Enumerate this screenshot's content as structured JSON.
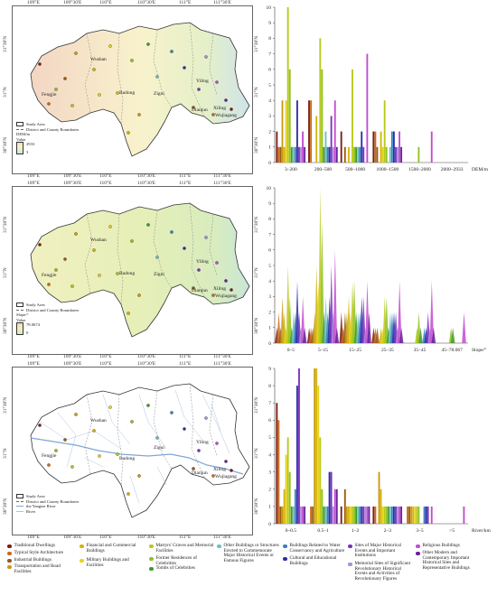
{
  "panels": [
    {
      "id": "dem",
      "lat_ticks": [
        "31°30'N",
        "31°N",
        "30°30'N"
      ],
      "lon_ticks": [
        "109°E",
        "109°30'E",
        "110°E",
        "110°30'E",
        "111°E",
        "111°30'E"
      ],
      "cities": [
        "Wushan",
        "Fengjie",
        "Badong",
        "Zigui",
        "Yiling",
        "Dianjun",
        "Xiling",
        "Wujiagang"
      ],
      "legend": {
        "study_area": "Study Area",
        "boundaries": "District and County Boundaries",
        "field": "DEM/m",
        "value_label": "Value",
        "high": "2933",
        "low": "3"
      },
      "ramp_colors": [
        "#f3d6c4",
        "#f8f2cc",
        "#e5f0c8",
        "#cfe3ea"
      ]
    },
    {
      "id": "slope",
      "lat_ticks": [
        "31°30'N",
        "31°N",
        "30°30'N"
      ],
      "lon_ticks": [
        "109°E",
        "109°30'E",
        "110°E",
        "110°30'E",
        "111°E",
        "111°30'E"
      ],
      "cities": [
        "Wushan",
        "Fengjie",
        "Badong",
        "Zigui",
        "Yiling",
        "Dianjun",
        "Xiling",
        "Wujiagang"
      ],
      "legend": {
        "study_area": "Study Area",
        "boundaries": "District and County Boundaries",
        "field": "Slope/°",
        "value_label": "Value",
        "high": "78.0674",
        "low": "0"
      },
      "ramp_colors": [
        "#f0f0c0",
        "#e6efb8",
        "#d8ecbe",
        "#c8e6d8"
      ]
    },
    {
      "id": "river",
      "lat_ticks": [
        "31°30'N",
        "31°N",
        "30°30'N"
      ],
      "lon_ticks": [
        "109°E",
        "109°30'E",
        "110°E",
        "110°30'E",
        "111°E",
        "111°30'E"
      ],
      "cities": [
        "Wushan",
        "Fengjie",
        "Badong",
        "Zigui",
        "Yiling",
        "Dianjun",
        "Xiling",
        "Wujiagang"
      ],
      "legend": {
        "study_area": "Study Area",
        "boundaries": "District and County Boundaries",
        "yangtze": "the Yangtze River",
        "river": "River"
      },
      "ramp_colors": [
        "#ffffff"
      ]
    }
  ],
  "categories": [
    {
      "label": "Traditional Dwellings",
      "color": "#7b1d12"
    },
    {
      "label": "Typical Style Architecture",
      "color": "#c96a1c"
    },
    {
      "label": "Industrial Buildings",
      "color": "#9a5a12"
    },
    {
      "label": "Transportation and Road Facilities",
      "color": "#c99a10"
    },
    {
      "label": "Financial and Commercial Buildings",
      "color": "#d4b40a"
    },
    {
      "label": "Military Buildings and Facilities",
      "color": "#e6d21a"
    },
    {
      "label": "Martyrs' Graves and Memorial Facilities",
      "color": "#b8c818"
    },
    {
      "label": "Former Residences of Celebrities",
      "color": "#8fc21e"
    },
    {
      "label": "Tombs of Celebrities",
      "color": "#3e9a2a"
    },
    {
      "label": "Other Buildings or Structures Erected to Commemorate Major Historical Events or Famous Figures",
      "color": "#6cc0c0"
    },
    {
      "label": "Buildings Related to Water Conservancy and Agriculture",
      "color": "#3a7fc4"
    },
    {
      "label": "Cultural and Educational Buildings",
      "color": "#2b2fa0"
    },
    {
      "label": "Sites of Major Historical Events and Important Institutions",
      "color": "#7a30c0"
    },
    {
      "label": "Memorial Sites of Significant Revolutionary Historical Events and Activities of Revolutionary Figures",
      "color": "#a98fd8"
    },
    {
      "label": "Religious Buildings",
      "color": "#c24ad0"
    },
    {
      "label": "Other Modern and Contemporary Important Historical Sites and Representative Buildings",
      "color": "#6a1f9a"
    }
  ],
  "chart_data": [
    {
      "type": "bar",
      "xlabel": "DEM/m",
      "ylabel": "",
      "ylim": [
        0,
        10
      ],
      "yticks": [
        0,
        1,
        2,
        3,
        4,
        5,
        6,
        7,
        8,
        9,
        10
      ],
      "categories": [
        "3–200",
        "200–500",
        "500–1000",
        "1000–1500",
        "1500–2000",
        "2000–2933"
      ],
      "series_values": [
        [
          2,
          4,
          2,
          2,
          0,
          0
        ],
        [
          1,
          4,
          0,
          2,
          0,
          0
        ],
        [
          1,
          0,
          1,
          1,
          0,
          0
        ],
        [
          4,
          0,
          0,
          0,
          0,
          0
        ],
        [
          1,
          3,
          1,
          2,
          0,
          0
        ],
        [
          4,
          0,
          0,
          1,
          0,
          0
        ],
        [
          10,
          8,
          6,
          4,
          0,
          0
        ],
        [
          6,
          6,
          1,
          1,
          1,
          0
        ],
        [
          1,
          1,
          1,
          0,
          0,
          0
        ],
        [
          1,
          2,
          1,
          1,
          0,
          0
        ],
        [
          1,
          1,
          1,
          2,
          0,
          0
        ],
        [
          4,
          1,
          2,
          2,
          0,
          0
        ],
        [
          1,
          3,
          1,
          1,
          0,
          0
        ],
        [
          1,
          1,
          0,
          1,
          0,
          0
        ],
        [
          2,
          4,
          7,
          2,
          2,
          0
        ],
        [
          1,
          1,
          0,
          1,
          0,
          0
        ]
      ]
    },
    {
      "type": "bar",
      "xlabel": "Slope/°",
      "ylabel": "",
      "ylim": [
        0,
        10
      ],
      "yticks": [
        0,
        1,
        2,
        3,
        4,
        5,
        6,
        7,
        8,
        9,
        10
      ],
      "categories": [
        "0–5",
        "5–15",
        "15–25",
        "25–35",
        "35–45",
        "45–78.067"
      ],
      "series_values": [
        [
          1,
          1,
          2,
          1,
          0,
          0
        ],
        [
          2,
          1,
          1,
          1,
          0,
          0
        ],
        [
          1,
          1,
          2,
          1,
          0,
          0
        ],
        [
          3,
          2,
          2,
          0,
          0,
          0
        ],
        [
          2,
          5,
          3,
          1,
          0,
          0
        ],
        [
          1,
          4,
          2,
          1,
          0,
          0
        ],
        [
          5,
          10,
          4,
          3,
          1,
          0
        ],
        [
          3,
          8,
          4,
          3,
          2,
          1
        ],
        [
          1,
          2,
          2,
          1,
          1,
          1
        ],
        [
          2,
          3,
          2,
          2,
          0,
          0
        ],
        [
          2,
          2,
          2,
          2,
          1,
          0
        ],
        [
          4,
          3,
          3,
          2,
          1,
          0
        ],
        [
          2,
          5,
          3,
          2,
          2,
          0
        ],
        [
          1,
          2,
          1,
          1,
          1,
          0
        ],
        [
          3,
          6,
          4,
          4,
          4,
          2
        ],
        [
          1,
          1,
          2,
          1,
          1,
          0
        ]
      ]
    },
    {
      "type": "bar",
      "xlabel": "River/km",
      "ylabel": "",
      "ylim": [
        0,
        9
      ],
      "yticks": [
        0,
        1,
        2,
        3,
        4,
        5,
        6,
        7,
        8,
        9
      ],
      "categories": [
        "0–0.5",
        "0.5–1",
        "1–2",
        "2–3",
        "3–5",
        ">5"
      ],
      "series_values": [
        [
          7,
          0,
          1,
          1,
          0,
          0
        ],
        [
          6,
          1,
          0,
          1,
          1,
          0
        ],
        [
          1,
          1,
          2,
          0,
          1,
          0
        ],
        [
          1,
          9,
          1,
          3,
          1,
          0
        ],
        [
          2,
          9,
          1,
          2,
          1,
          0
        ],
        [
          4,
          8,
          1,
          1,
          1,
          0
        ],
        [
          5,
          5,
          1,
          1,
          1,
          0
        ],
        [
          3,
          2,
          1,
          1,
          1,
          0
        ],
        [
          1,
          1,
          1,
          1,
          0,
          0
        ],
        [
          1,
          1,
          1,
          1,
          0,
          0
        ],
        [
          2,
          1,
          1,
          1,
          1,
          0
        ],
        [
          8,
          3,
          1,
          1,
          1,
          0
        ],
        [
          9,
          3,
          1,
          1,
          1,
          0
        ],
        [
          1,
          1,
          1,
          1,
          0,
          0
        ],
        [
          1,
          2,
          1,
          1,
          1,
          1
        ],
        [
          1,
          2,
          1,
          1,
          0,
          0
        ]
      ]
    }
  ]
}
